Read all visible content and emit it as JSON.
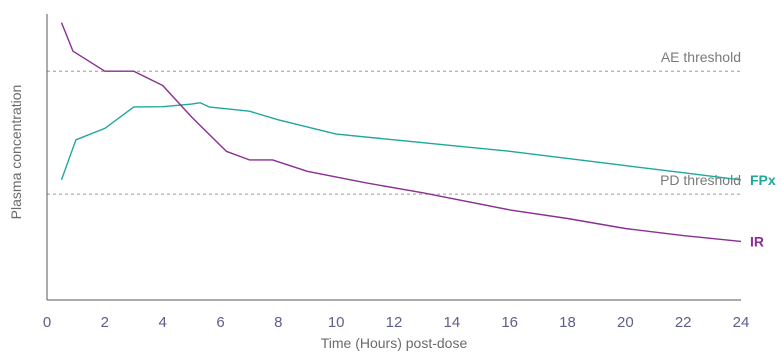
{
  "chart_data": {
    "type": "line",
    "title": "",
    "xlabel": "Time (Hours) post-dose",
    "ylabel": "Plasma concentration",
    "xlim": [
      0,
      24
    ],
    "ylim": [
      0,
      100
    ],
    "xticks": [
      "0",
      "2",
      "4",
      "6",
      "8",
      "10",
      "12",
      "14",
      "16",
      "18",
      "20",
      "22",
      "24"
    ],
    "grid": false,
    "thresholds": [
      {
        "label": "AE threshold",
        "y": 80
      },
      {
        "label": "PD threshold",
        "y": 37
      }
    ],
    "series": [
      {
        "name": "FPx",
        "color": "#1fa89a",
        "x": [
          0.5,
          1.0,
          2.0,
          3.0,
          4.0,
          5.0,
          5.3,
          5.6,
          7.0,
          8.0,
          10.0,
          12.0,
          14.0,
          16.0,
          18.0,
          20.0,
          22.0,
          24.0
        ],
        "y": [
          42,
          56,
          60,
          67.5,
          67.6,
          68.5,
          69,
          67.5,
          66,
          63,
          58,
          56,
          54,
          52,
          49.5,
          47,
          44.5,
          42
        ]
      },
      {
        "name": "IR",
        "color": "#8a2f93",
        "x": [
          0.5,
          0.9,
          2.0,
          3.0,
          4.0,
          5.0,
          6.2,
          7.0,
          7.8,
          9.0,
          11.0,
          13.0,
          16.0,
          18.0,
          20.0,
          22.0,
          24.0
        ],
        "y": [
          97,
          87,
          80,
          80,
          75,
          64,
          52,
          49,
          49,
          45,
          41,
          37.5,
          31.5,
          28.5,
          25,
          22.5,
          20.5
        ]
      }
    ]
  }
}
